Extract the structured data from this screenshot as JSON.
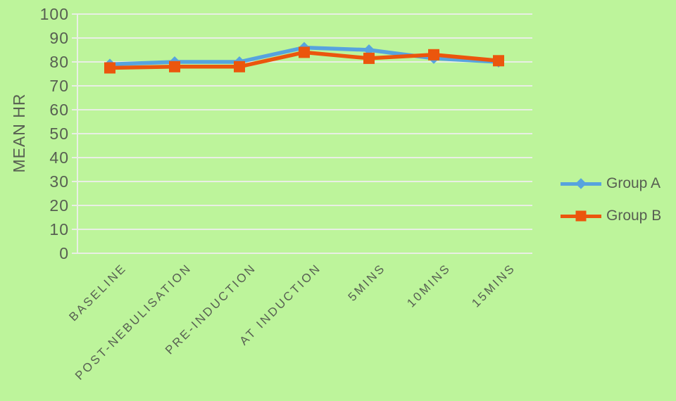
{
  "colors": {
    "background": "#BDF49B",
    "text": "#575F52",
    "gridline": "#E9EEE5",
    "group_a": "#57A3DE",
    "group_b": "#EB560D"
  },
  "chart_data": {
    "type": "line",
    "title": "",
    "xlabel": "",
    "ylabel": "MEAN HR",
    "ylim": [
      0,
      100
    ],
    "ytick_step": 10,
    "yticks": [
      0,
      10,
      20,
      30,
      40,
      50,
      60,
      70,
      80,
      90,
      100
    ],
    "grid": true,
    "legend_position": "right",
    "categories": [
      "BASELINE",
      "POST-NEBULISATION",
      "PRE-INDUCTION",
      "AT INDUCTION",
      "5MINS",
      "10MINS",
      "15MINS"
    ],
    "series": [
      {
        "name": "Group A",
        "marker": "diamond",
        "color": "#57A3DE",
        "values": [
          79,
          80,
          80,
          86,
          85,
          81.5,
          80
        ]
      },
      {
        "name": "Group B",
        "marker": "square",
        "color": "#EB560D",
        "values": [
          77.5,
          78,
          78,
          84,
          81.5,
          83,
          80.5
        ]
      }
    ]
  }
}
